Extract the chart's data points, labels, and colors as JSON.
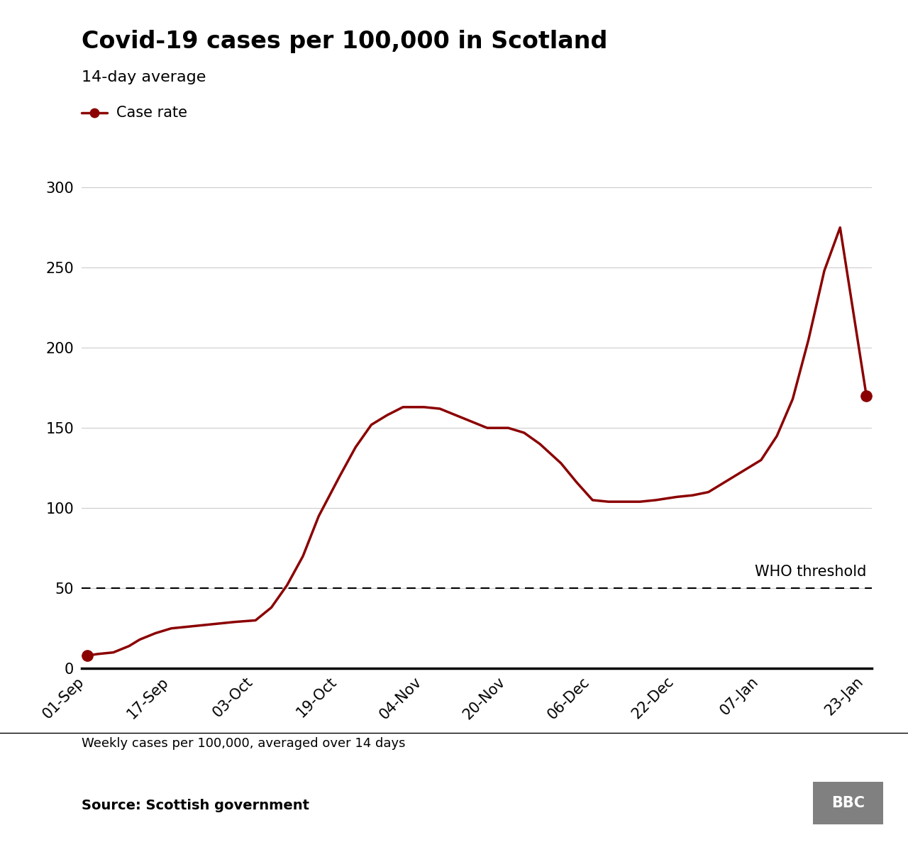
{
  "title": "Covid-19 cases per 100,000 in Scotland",
  "subtitle": "14-day average",
  "legend_label": "Case rate",
  "footer_note": "Weekly cases per 100,000, averaged over 14 days",
  "source": "Source: Scottish government",
  "line_color": "#8B0000",
  "line_width": 2.5,
  "who_threshold": 50,
  "who_label": "WHO threshold",
  "ylim": [
    0,
    310
  ],
  "yticks": [
    0,
    50,
    100,
    150,
    200,
    250,
    300
  ],
  "xtick_labels": [
    "01-Sep",
    "17-Sep",
    "03-Oct",
    "19-Oct",
    "04-Nov",
    "20-Nov",
    "06-Dec",
    "22-Dec",
    "07-Jan",
    "23-Jan"
  ],
  "background_color": "#ffffff",
  "grid_color": "#cccccc",
  "axis_color": "#000000",
  "title_fontsize": 24,
  "subtitle_fontsize": 16,
  "tick_fontsize": 15,
  "annotation_fontsize": 15,
  "bbc_box_color": "#808080",
  "bbc_text_color": "#ffffff",
  "x_pts": [
    0,
    2,
    5,
    8,
    10,
    13,
    16,
    19,
    22,
    25,
    28,
    32,
    35,
    38,
    41,
    44,
    48,
    51,
    54,
    57,
    60,
    64,
    67,
    70,
    73,
    76,
    80,
    83,
    86,
    90,
    93,
    96,
    99,
    102,
    105,
    108,
    112,
    115,
    118,
    121,
    124,
    128,
    131,
    134,
    137,
    140,
    143,
    148
  ],
  "y_pts": [
    8,
    9,
    10,
    14,
    18,
    22,
    25,
    26,
    27,
    28,
    29,
    30,
    38,
    52,
    70,
    95,
    120,
    138,
    152,
    158,
    163,
    163,
    162,
    158,
    154,
    150,
    150,
    147,
    140,
    128,
    116,
    105,
    104,
    104,
    104,
    105,
    107,
    108,
    110,
    116,
    122,
    130,
    145,
    168,
    205,
    248,
    275,
    170
  ],
  "xtick_positions": [
    0,
    16,
    32,
    48,
    64,
    80,
    96,
    112,
    128,
    148
  ]
}
